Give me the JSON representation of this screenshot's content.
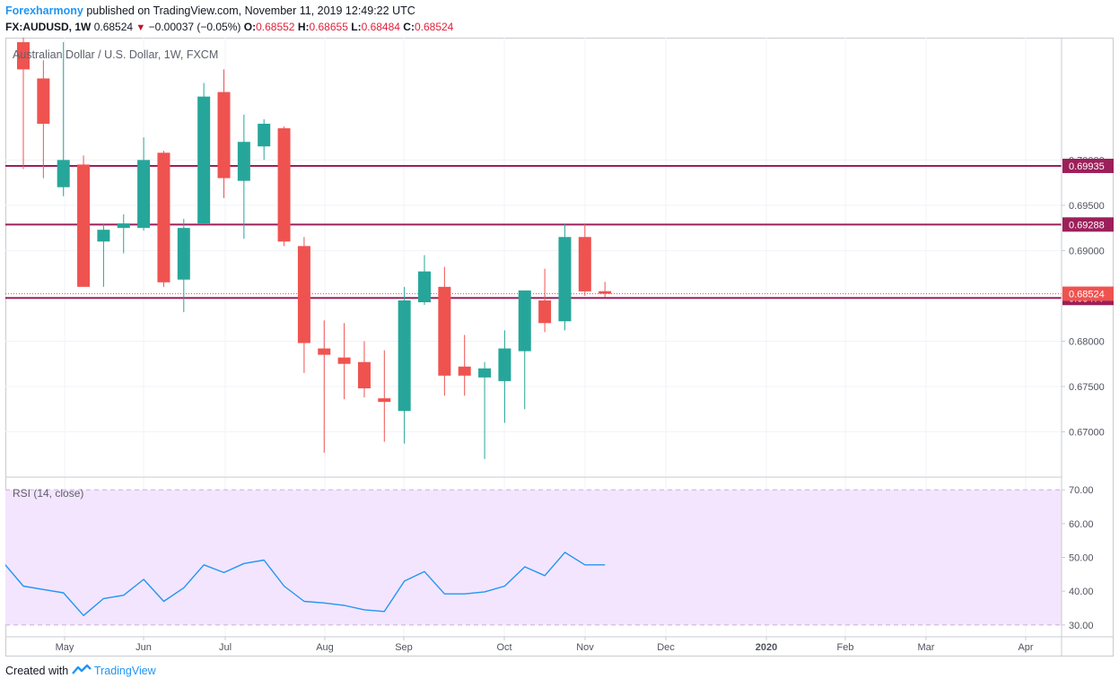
{
  "header": {
    "author": "Forexharmony",
    "published": "published on TradingView.com, November 11, 2019 12:49:22 UTC",
    "symbol": "FX:AUDUSD, 1W",
    "last": "0.68524",
    "change": "−0.00037 (−0.05%)",
    "o_label": "O:",
    "o_value": "0.68552",
    "h_label": "H:",
    "h_value": "0.68655",
    "l_label": "L:",
    "l_value": "0.68484",
    "c_label": "C:",
    "c_value": "0.68524"
  },
  "footer": {
    "created_with": "Created with",
    "brand": "TradingView"
  },
  "colors": {
    "up": "#26a69a",
    "down": "#ef5350",
    "hline": "#9c1f5a",
    "rsi_line": "#2196f3",
    "rsi_band": "#f3e5fd",
    "label_last_bg": "#ef5350"
  },
  "chart_data": {
    "type": "candlestick",
    "title": "Australian Dollar / U.S. Dollar, 1W, FXCM",
    "price_axis": {
      "range": [
        0.665,
        0.7135
      ],
      "ticks": [
        "0.67000",
        "0.67500",
        "0.68000",
        "0.68500",
        "0.69000",
        "0.69500",
        "0.70000"
      ],
      "grid": true
    },
    "time_axis": {
      "labels": [
        "May",
        "Jun",
        "Jul",
        "Aug",
        "Sep",
        "Oct",
        "Nov",
        "Dec",
        "2020",
        "Feb",
        "Mar",
        "Apr"
      ]
    },
    "horizontal_lines": [
      {
        "value": 0.69935,
        "label": "0.69935"
      },
      {
        "value": 0.69288,
        "label": "0.69288"
      },
      {
        "value": 0.68477,
        "label": "0.68477"
      }
    ],
    "last_price": {
      "value": 0.68524,
      "label": "0.68524"
    },
    "candles": [
      {
        "o": 0.713,
        "h": 0.716,
        "l": 0.699,
        "c": 0.71
      },
      {
        "o": 0.709,
        "h": 0.711,
        "l": 0.698,
        "c": 0.704
      },
      {
        "o": 0.697,
        "h": 0.713,
        "l": 0.696,
        "c": 0.7
      },
      {
        "o": 0.6995,
        "h": 0.7005,
        "l": 0.686,
        "c": 0.686
      },
      {
        "o": 0.691,
        "h": 0.693,
        "l": 0.686,
        "c": 0.6923
      },
      {
        "o": 0.6925,
        "h": 0.694,
        "l": 0.6897,
        "c": 0.693
      },
      {
        "o": 0.6925,
        "h": 0.7025,
        "l": 0.6922,
        "c": 0.7
      },
      {
        "o": 0.7008,
        "h": 0.701,
        "l": 0.686,
        "c": 0.6865
      },
      {
        "o": 0.6868,
        "h": 0.6935,
        "l": 0.6832,
        "c": 0.6925
      },
      {
        "o": 0.693,
        "h": 0.7085,
        "l": 0.693,
        "c": 0.707
      },
      {
        "o": 0.7075,
        "h": 0.71,
        "l": 0.6958,
        "c": 0.698
      },
      {
        "o": 0.6977,
        "h": 0.705,
        "l": 0.6913,
        "c": 0.702
      },
      {
        "o": 0.7015,
        "h": 0.7045,
        "l": 0.7,
        "c": 0.704
      },
      {
        "o": 0.7035,
        "h": 0.7037,
        "l": 0.6905,
        "c": 0.691
      },
      {
        "o": 0.6905,
        "h": 0.6915,
        "l": 0.6765,
        "c": 0.6798
      },
      {
        "o": 0.6792,
        "h": 0.6823,
        "l": 0.6677,
        "c": 0.6785
      },
      {
        "o": 0.6782,
        "h": 0.682,
        "l": 0.6736,
        "c": 0.6775
      },
      {
        "o": 0.6777,
        "h": 0.68,
        "l": 0.6738,
        "c": 0.6748
      },
      {
        "o": 0.6737,
        "h": 0.679,
        "l": 0.6689,
        "c": 0.6733
      },
      {
        "o": 0.6723,
        "h": 0.686,
        "l": 0.6687,
        "c": 0.6845
      },
      {
        "o": 0.6843,
        "h": 0.6895,
        "l": 0.684,
        "c": 0.6877
      },
      {
        "o": 0.686,
        "h": 0.6882,
        "l": 0.674,
        "c": 0.6762
      },
      {
        "o": 0.6772,
        "h": 0.6807,
        "l": 0.674,
        "c": 0.6762
      },
      {
        "o": 0.676,
        "h": 0.6777,
        "l": 0.667,
        "c": 0.677
      },
      {
        "o": 0.6756,
        "h": 0.6812,
        "l": 0.671,
        "c": 0.6792
      },
      {
        "o": 0.6789,
        "h": 0.6856,
        "l": 0.6725,
        "c": 0.6856
      },
      {
        "o": 0.6845,
        "h": 0.688,
        "l": 0.681,
        "c": 0.682
      },
      {
        "o": 0.6822,
        "h": 0.693,
        "l": 0.6812,
        "c": 0.6915
      },
      {
        "o": 0.6915,
        "h": 0.693,
        "l": 0.685,
        "c": 0.6855
      },
      {
        "o": 0.68552,
        "h": 0.68655,
        "l": 0.68484,
        "c": 0.68524
      }
    ],
    "rsi": {
      "label": "RSI (14, close)",
      "range": [
        26.5,
        73.5
      ],
      "band": [
        30,
        70
      ],
      "ticks": [
        "30.00",
        "40.00",
        "50.00",
        "60.00",
        "70.00"
      ],
      "values": [
        48.5,
        41.5,
        40.5,
        39.5,
        32.8,
        37.8,
        38.8,
        43.5,
        37.0,
        41.0,
        47.8,
        45.5,
        48.2,
        49.2,
        41.5,
        37.0,
        36.5,
        35.8,
        34.5,
        34.0,
        43.0,
        45.8,
        39.2,
        39.2,
        39.8,
        41.5,
        47.2,
        44.6,
        51.5,
        47.8,
        47.8
      ],
      "first_value_x_offset": -1
    }
  }
}
